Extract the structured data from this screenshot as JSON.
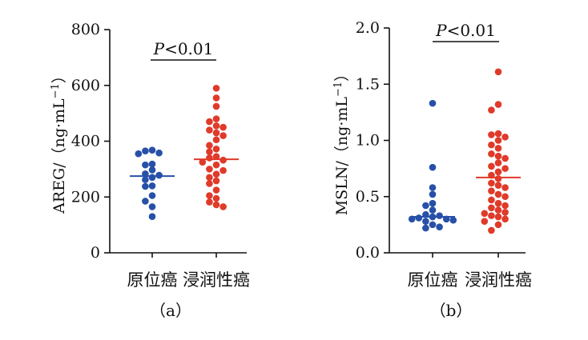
{
  "chart_data": [
    {
      "type": "scatter",
      "panel_label": "（a）",
      "ylabel_main": "AREG/（ng·mL",
      "ylabel_exp": "−1",
      "ylabel_close": "）",
      "ylim": [
        0,
        800
      ],
      "yticks": [
        0,
        200,
        400,
        600,
        800
      ],
      "ytick_labels": [
        "0",
        "200",
        "400",
        "600",
        "800"
      ],
      "categories": [
        "原位癌",
        "浸润性癌"
      ],
      "significance": {
        "prefix": "P",
        "suffix": "<0.01"
      },
      "series": [
        {
          "category": "原位癌",
          "color": "#2750a8",
          "median": 275,
          "values": [
            368,
            365,
            358,
            355,
            318,
            315,
            297,
            283,
            278,
            270,
            262,
            240,
            238,
            205,
            185,
            165,
            130
          ]
        },
        {
          "category": "浸润性癌",
          "color": "#e03a2a",
          "median": 335,
          "values": [
            590,
            555,
            525,
            480,
            470,
            455,
            450,
            440,
            430,
            420,
            405,
            385,
            372,
            362,
            345,
            340,
            332,
            325,
            315,
            300,
            295,
            282,
            270,
            258,
            248,
            225,
            205,
            195,
            182,
            172,
            165
          ]
        }
      ]
    },
    {
      "type": "scatter",
      "panel_label": "（b）",
      "ylabel_main": "MSLN/（ng·mL",
      "ylabel_exp": "−1",
      "ylabel_close": "）",
      "ylim": [
        0,
        2.0
      ],
      "yticks": [
        0,
        0.5,
        1.0,
        1.5,
        2.0
      ],
      "ytick_labels": [
        "0.0",
        "0.5",
        "1.0",
        "1.5",
        "2.0"
      ],
      "categories": [
        "原位癌",
        "浸润性癌"
      ],
      "significance": {
        "prefix": "P",
        "suffix": "<0.01"
      },
      "series": [
        {
          "category": "原位癌",
          "color": "#2750a8",
          "median": 0.32,
          "values": [
            1.33,
            0.76,
            0.58,
            0.52,
            0.44,
            0.42,
            0.38,
            0.34,
            0.33,
            0.32,
            0.31,
            0.3,
            0.3,
            0.29,
            0.28,
            0.25,
            0.23,
            0.22
          ]
        },
        {
          "category": "浸润性癌",
          "color": "#e03a2a",
          "median": 0.67,
          "values": [
            1.61,
            1.32,
            1.27,
            1.06,
            1.05,
            1.03,
            1.0,
            0.96,
            0.93,
            0.88,
            0.86,
            0.84,
            0.8,
            0.77,
            0.75,
            0.72,
            0.69,
            0.66,
            0.62,
            0.6,
            0.58,
            0.55,
            0.52,
            0.5,
            0.47,
            0.44,
            0.42,
            0.4,
            0.38,
            0.36,
            0.35,
            0.33,
            0.32,
            0.3,
            0.28,
            0.25,
            0.2
          ]
        }
      ]
    }
  ]
}
